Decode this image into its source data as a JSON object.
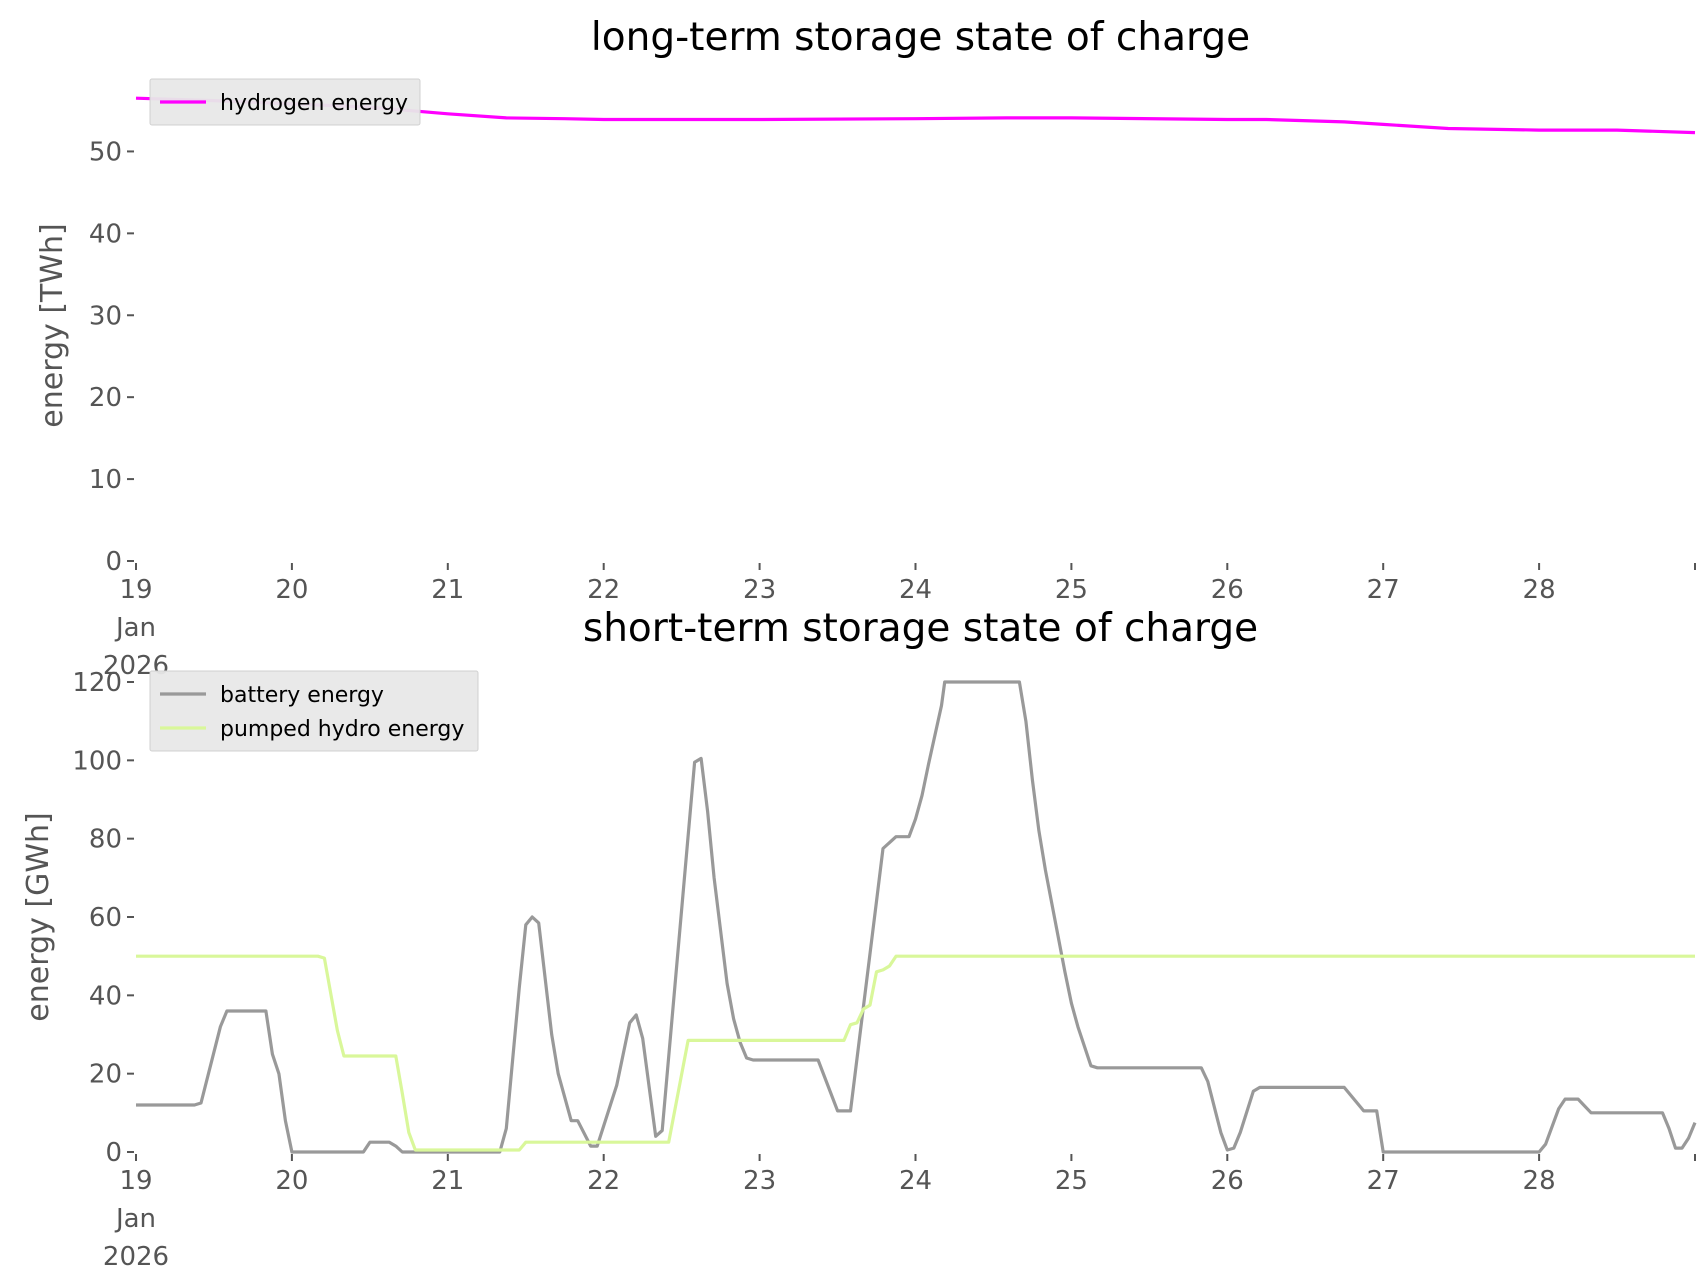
{
  "chart_data": [
    {
      "type": "line",
      "title": "long-term storage state of charge",
      "xlabel": "",
      "ylabel": "energy [TWh]",
      "ylim": [
        0,
        57.5
      ],
      "yticks": [
        0,
        10,
        20,
        30,
        40,
        50
      ],
      "xlim": [
        "2026-01-19",
        "2026-01-29"
      ],
      "xticks": [
        "19",
        "20",
        "21",
        "22",
        "23",
        "24",
        "25",
        "26",
        "27",
        "28"
      ],
      "first_tick_label": [
        "19",
        "Jan",
        "2026"
      ],
      "grid": false,
      "legend": "top-left",
      "series": [
        {
          "name": "hydrogen energy",
          "color": "#ff00ff",
          "points": [
            [
              "2026-01-19T00:00",
              56.5
            ],
            [
              "2026-01-19T12:00",
              56.2
            ],
            [
              "2026-01-20T00:00",
              55.8
            ],
            [
              "2026-01-20T12:00",
              55.4
            ],
            [
              "2026-01-21T00:00",
              54.6
            ],
            [
              "2026-01-21T09:00",
              54.1
            ],
            [
              "2026-01-21T18:00",
              54.0
            ],
            [
              "2026-01-22T00:00",
              53.9
            ],
            [
              "2026-01-23T00:00",
              53.9
            ],
            [
              "2026-01-24T00:00",
              54.0
            ],
            [
              "2026-01-24T14:00",
              54.1
            ],
            [
              "2026-01-25T00:00",
              54.1
            ],
            [
              "2026-01-26T00:00",
              53.9
            ],
            [
              "2026-01-26T06:00",
              53.9
            ],
            [
              "2026-01-26T18:00",
              53.6
            ],
            [
              "2026-01-27T00:00",
              53.3
            ],
            [
              "2026-01-27T10:00",
              52.8
            ],
            [
              "2026-01-28T00:00",
              52.6
            ],
            [
              "2026-01-28T12:00",
              52.6
            ],
            [
              "2026-01-29T00:00",
              52.3
            ]
          ]
        }
      ]
    },
    {
      "type": "line",
      "title": "short-term storage state of charge",
      "xlabel": "",
      "ylabel": "energy [GWh]",
      "ylim": [
        0,
        120
      ],
      "yticks": [
        0,
        20,
        40,
        60,
        80,
        100,
        120
      ],
      "xlim": [
        "2026-01-19",
        "2026-01-29"
      ],
      "xticks": [
        "19",
        "20",
        "21",
        "22",
        "23",
        "24",
        "25",
        "26",
        "27",
        "28"
      ],
      "first_tick_label": [
        "19",
        "Jan",
        "2026"
      ],
      "grid": false,
      "legend": "top-left",
      "series": [
        {
          "name": "battery energy",
          "color": "#999999",
          "points": [
            [
              "2026-01-19T00:00",
              12
            ],
            [
              "2026-01-19T09:00",
              12
            ],
            [
              "2026-01-19T10:00",
              12.5
            ],
            [
              "2026-01-19T13:00",
              32
            ],
            [
              "2026-01-19T14:00",
              36
            ],
            [
              "2026-01-19T20:00",
              36
            ],
            [
              "2026-01-19T21:00",
              25
            ],
            [
              "2026-01-19T22:00",
              20
            ],
            [
              "2026-01-19T23:00",
              8
            ],
            [
              "2026-01-20T00:00",
              0
            ],
            [
              "2026-01-20T11:00",
              0
            ],
            [
              "2026-01-20T12:00",
              2.5
            ],
            [
              "2026-01-20T15:00",
              2.5
            ],
            [
              "2026-01-20T16:00",
              1.5
            ],
            [
              "2026-01-20T17:00",
              0
            ],
            [
              "2026-01-21T08:00",
              0
            ],
            [
              "2026-01-21T09:00",
              6
            ],
            [
              "2026-01-21T11:00",
              42
            ],
            [
              "2026-01-21T12:00",
              58
            ],
            [
              "2026-01-21T13:00",
              60
            ],
            [
              "2026-01-21T14:00",
              58.5
            ],
            [
              "2026-01-21T16:00",
              30
            ],
            [
              "2026-01-21T17:00",
              20
            ],
            [
              "2026-01-21T19:00",
              8
            ],
            [
              "2026-01-21T20:00",
              8
            ],
            [
              "2026-01-21T22:00",
              1.5
            ],
            [
              "2026-01-21T23:00",
              1.5
            ],
            [
              "2026-01-22T02:00",
              17
            ],
            [
              "2026-01-22T04:00",
              33
            ],
            [
              "2026-01-22T05:00",
              35
            ],
            [
              "2026-01-22T06:00",
              29
            ],
            [
              "2026-01-22T08:00",
              4
            ],
            [
              "2026-01-22T09:00",
              5.5
            ],
            [
              "2026-01-22T14:00",
              99.5
            ],
            [
              "2026-01-22T15:00",
              100.5
            ],
            [
              "2026-01-22T16:00",
              87
            ],
            [
              "2026-01-22T17:00",
              70
            ],
            [
              "2026-01-22T19:00",
              43
            ],
            [
              "2026-01-22T20:00",
              34
            ],
            [
              "2026-01-22T21:00",
              28
            ],
            [
              "2026-01-22T22:00",
              24
            ],
            [
              "2026-01-22T23:00",
              23.5
            ],
            [
              "2026-01-23T09:00",
              23.5
            ],
            [
              "2026-01-23T12:00",
              10.5
            ],
            [
              "2026-01-23T14:00",
              10.5
            ],
            [
              "2026-01-23T18:00",
              64
            ],
            [
              "2026-01-23T19:00",
              77.5
            ],
            [
              "2026-01-23T21:00",
              80.5
            ],
            [
              "2026-01-23T23:00",
              80.5
            ],
            [
              "2026-01-24T00:00",
              85
            ],
            [
              "2026-01-24T01:00",
              91
            ],
            [
              "2026-01-24T02:00",
              99
            ],
            [
              "2026-01-24T04:00",
              114
            ],
            [
              "2026-01-24T04:30",
              120
            ],
            [
              "2026-01-24T16:00",
              120
            ],
            [
              "2026-01-24T17:00",
              110
            ],
            [
              "2026-01-24T18:00",
              95
            ],
            [
              "2026-01-24T19:00",
              82
            ],
            [
              "2026-01-24T20:00",
              72
            ],
            [
              "2026-01-24T23:00",
              46
            ],
            [
              "2026-01-25T00:00",
              38
            ],
            [
              "2026-01-25T01:00",
              32
            ],
            [
              "2026-01-25T02:00",
              27
            ],
            [
              "2026-01-25T03:00",
              22
            ],
            [
              "2026-01-25T04:00",
              21.5
            ],
            [
              "2026-01-25T20:00",
              21.5
            ],
            [
              "2026-01-25T21:00",
              18
            ],
            [
              "2026-01-25T23:00",
              5
            ],
            [
              "2026-01-26T00:00",
              0.5
            ],
            [
              "2026-01-26T01:00",
              1
            ],
            [
              "2026-01-26T02:00",
              5
            ],
            [
              "2026-01-26T04:00",
              15.5
            ],
            [
              "2026-01-26T05:00",
              16.5
            ],
            [
              "2026-01-26T17:00",
              16.5
            ],
            [
              "2026-01-26T18:00",
              16.5
            ],
            [
              "2026-01-26T21:00",
              10.5
            ],
            [
              "2026-01-26T22:00",
              10.5
            ],
            [
              "2026-01-26T23:00",
              10.5
            ],
            [
              "2026-01-27T00:00",
              0
            ],
            [
              "2026-01-28T00:00",
              0
            ],
            [
              "2026-01-28T01:00",
              2
            ],
            [
              "2026-01-28T03:00",
              11
            ],
            [
              "2026-01-28T04:00",
              13.5
            ],
            [
              "2026-01-28T06:00",
              13.5
            ],
            [
              "2026-01-28T08:00",
              10
            ],
            [
              "2026-01-28T19:00",
              10
            ],
            [
              "2026-01-28T20:00",
              6
            ],
            [
              "2026-01-28T21:00",
              1
            ],
            [
              "2026-01-28T22:00",
              1
            ],
            [
              "2026-01-28T23:00",
              3.5
            ],
            [
              "2026-01-29T00:00",
              7.5
            ]
          ]
        },
        {
          "name": "pumped hydro energy",
          "color": "#d9f79a",
          "points": [
            [
              "2026-01-19T00:00",
              50
            ],
            [
              "2026-01-20T04:00",
              50
            ],
            [
              "2026-01-20T05:00",
              49.5
            ],
            [
              "2026-01-20T07:00",
              31
            ],
            [
              "2026-01-20T08:00",
              24.5
            ],
            [
              "2026-01-20T16:00",
              24.5
            ],
            [
              "2026-01-20T17:00",
              15
            ],
            [
              "2026-01-20T18:00",
              5
            ],
            [
              "2026-01-20T19:00",
              0.5
            ],
            [
              "2026-01-21T11:00",
              0.5
            ],
            [
              "2026-01-21T12:00",
              2.5
            ],
            [
              "2026-01-22T10:00",
              2.5
            ],
            [
              "2026-01-22T13:00",
              28.5
            ],
            [
              "2026-01-23T13:00",
              28.5
            ],
            [
              "2026-01-23T14:00",
              32.5
            ],
            [
              "2026-01-23T15:00",
              33
            ],
            [
              "2026-01-23T16:00",
              36.5
            ],
            [
              "2026-01-23T17:00",
              37.5
            ],
            [
              "2026-01-23T18:00",
              46
            ],
            [
              "2026-01-23T19:00",
              46.5
            ],
            [
              "2026-01-23T20:00",
              47.5
            ],
            [
              "2026-01-23T21:00",
              50
            ],
            [
              "2026-01-29T00:00",
              50
            ]
          ]
        }
      ]
    }
  ]
}
